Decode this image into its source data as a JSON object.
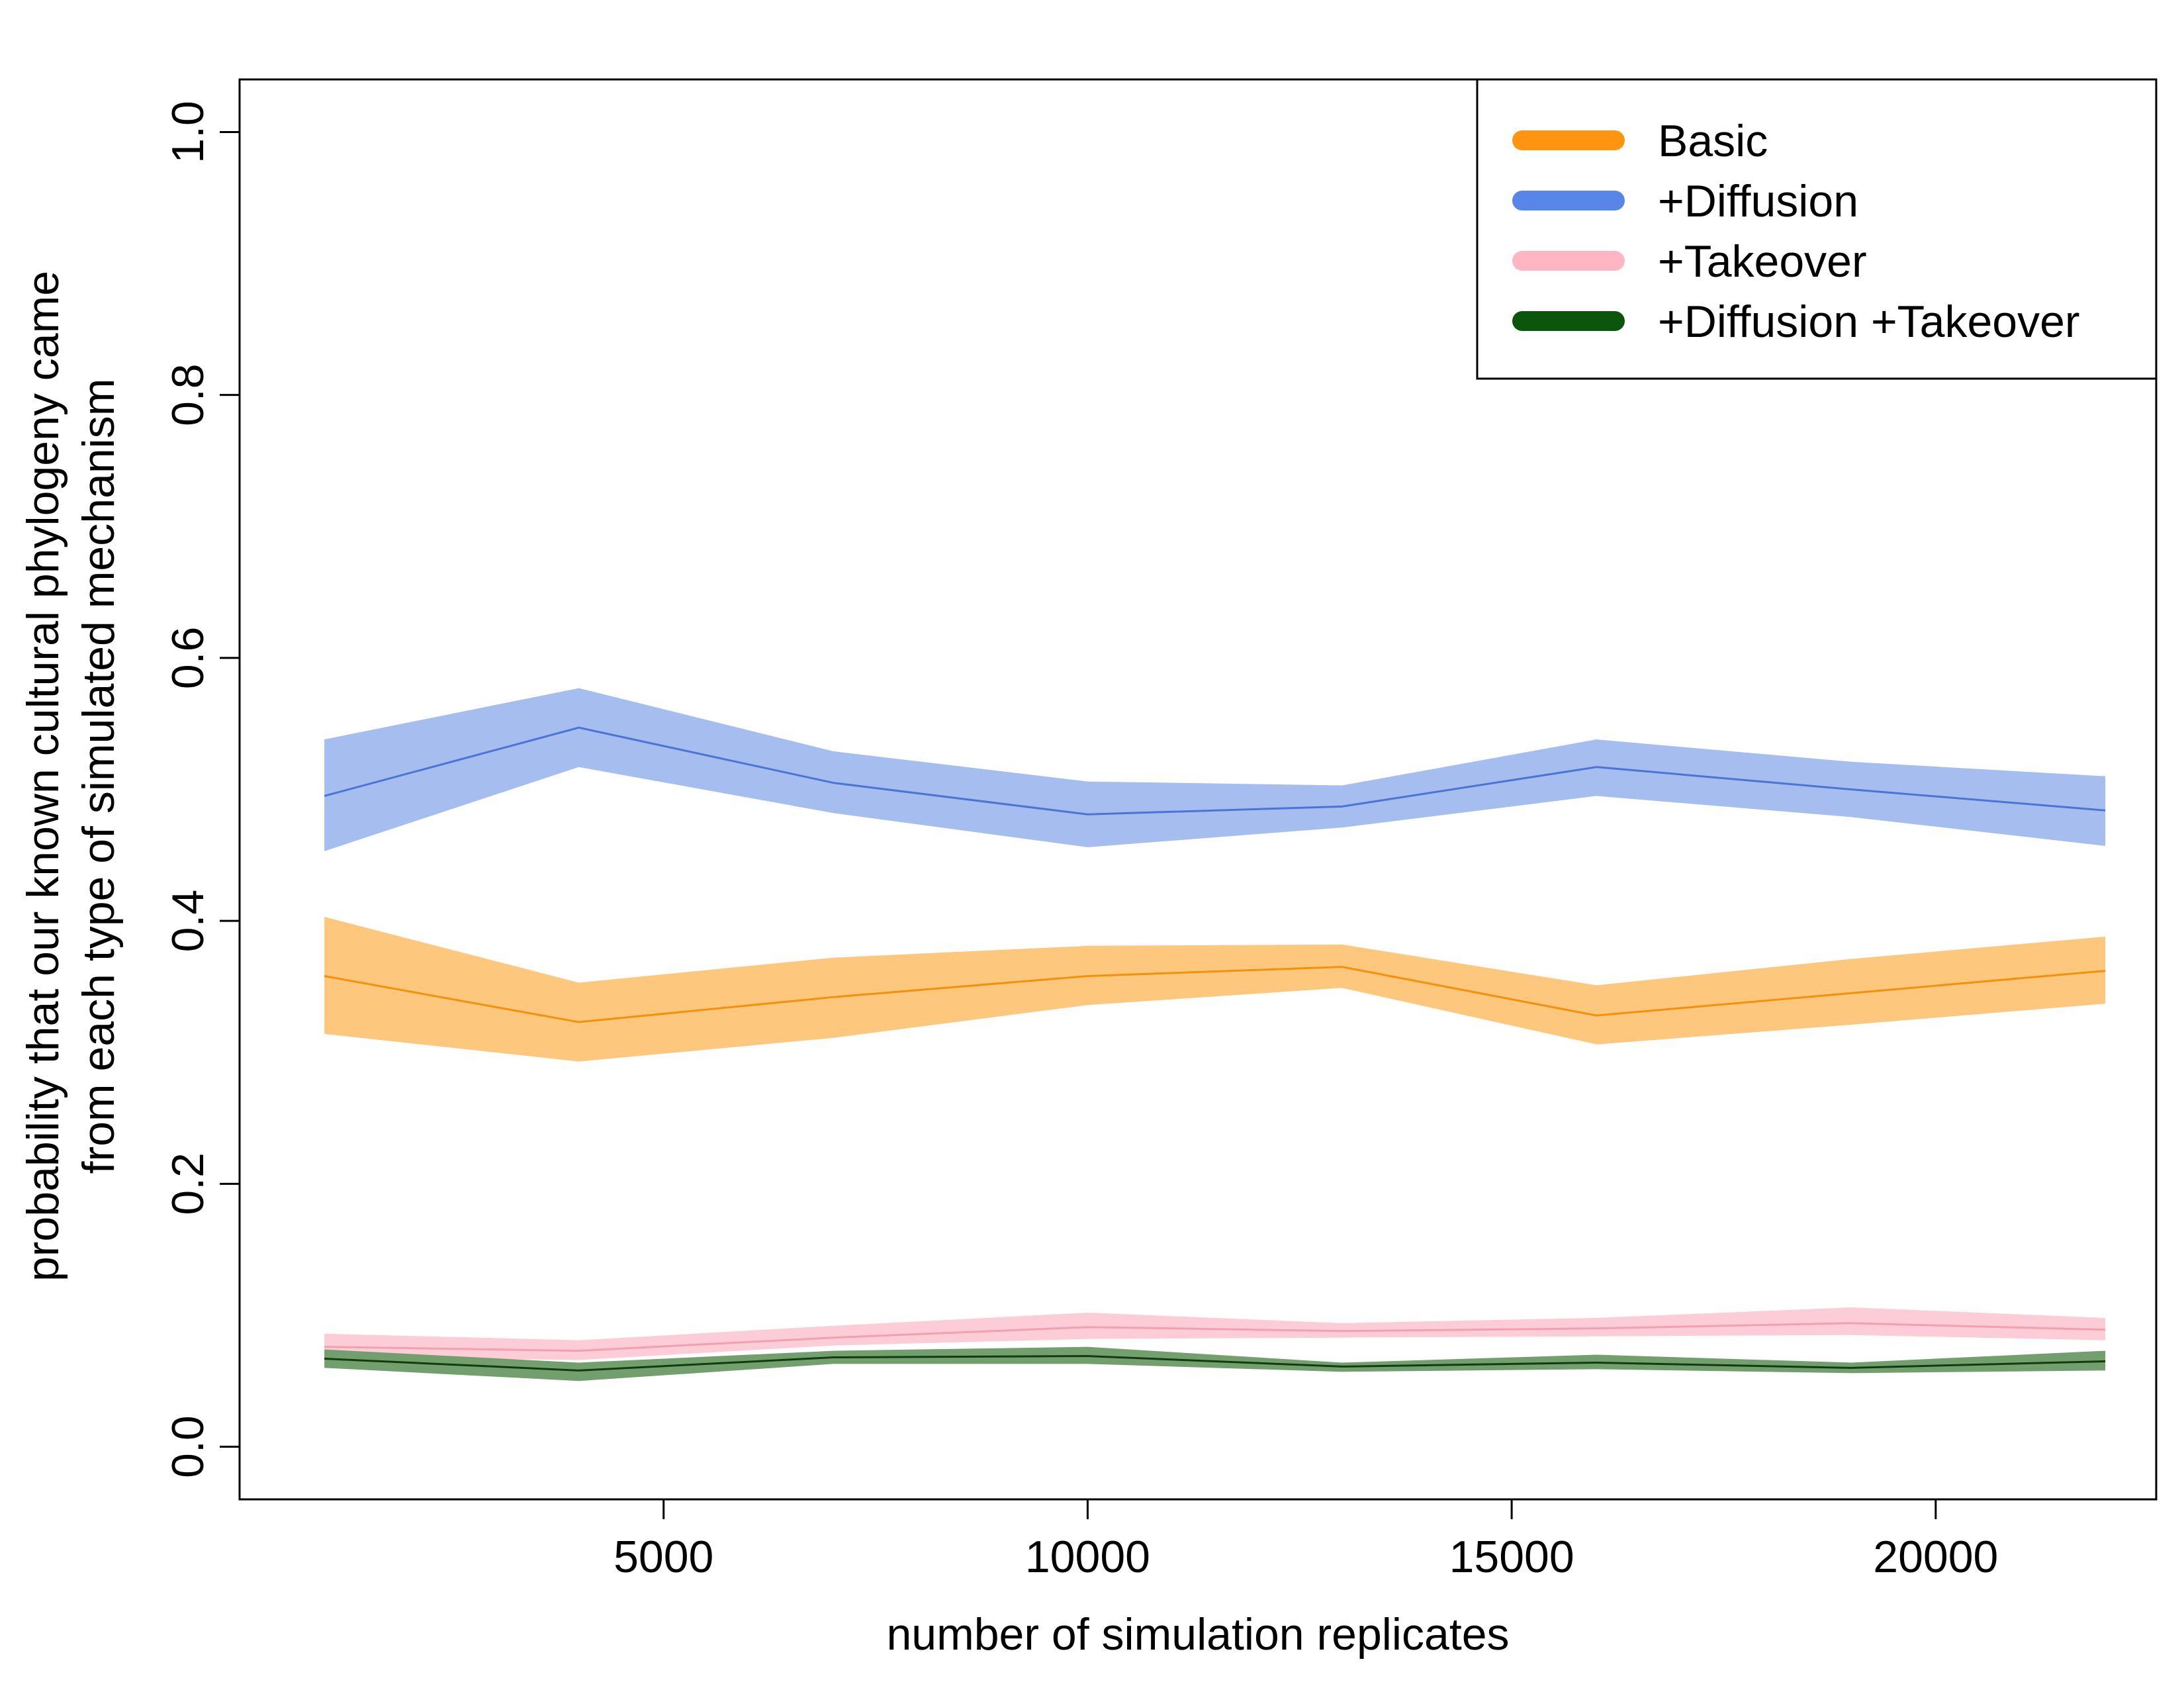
{
  "chart_data": {
    "type": "line",
    "xlabel": "number of simulation replicates",
    "ylabel_lines": [
      "probability that our known cultural phylogeny came",
      "from each type of simulated mechanism"
    ],
    "xlim": [
      0,
      22600
    ],
    "ylim": [
      -0.04,
      1.04
    ],
    "x_ticks": [
      5000,
      10000,
      15000,
      20000
    ],
    "x_tick_labels": [
      "5000",
      "10000",
      "15000",
      "20000"
    ],
    "y_ticks": [
      0.0,
      0.2,
      0.4,
      0.6,
      0.8,
      1.0
    ],
    "y_tick_labels": [
      "0.0",
      "0.2",
      "0.4",
      "0.6",
      "0.8",
      "1.0"
    ],
    "legend_position": "top-right",
    "grid": false,
    "x": [
      1000,
      4000,
      7000,
      10000,
      13000,
      16000,
      19000,
      22000
    ],
    "series": [
      {
        "name": "Basic",
        "line_color": "#f5900a",
        "band_color": "#fdc77e",
        "legend_color": "#ff9410",
        "values": [
          0.358,
          0.323,
          0.342,
          0.358,
          0.365,
          0.328,
          0.345,
          0.362
        ],
        "upper": [
          0.403,
          0.353,
          0.372,
          0.381,
          0.382,
          0.351,
          0.371,
          0.388
        ],
        "lower": [
          0.314,
          0.293,
          0.311,
          0.336,
          0.349,
          0.306,
          0.321,
          0.337
        ]
      },
      {
        "name": "+Diffusion",
        "line_color": "#4a74d8",
        "band_color": "#a6bdf0",
        "legend_color": "#5886e8",
        "values": [
          0.495,
          0.547,
          0.505,
          0.481,
          0.487,
          0.517,
          0.5,
          0.484
        ],
        "upper": [
          0.538,
          0.577,
          0.529,
          0.506,
          0.503,
          0.538,
          0.521,
          0.51
        ],
        "lower": [
          0.453,
          0.517,
          0.482,
          0.456,
          0.471,
          0.495,
          0.479,
          0.457
        ]
      },
      {
        "name": "+Takeover",
        "line_color": "#f2a0ae",
        "band_color": "#fccdd6",
        "legend_color": "#ffb5c2",
        "values": [
          0.076,
          0.073,
          0.083,
          0.091,
          0.088,
          0.09,
          0.094,
          0.089
        ],
        "upper": [
          0.086,
          0.081,
          0.092,
          0.102,
          0.094,
          0.098,
          0.106,
          0.098
        ],
        "lower": [
          0.068,
          0.066,
          0.077,
          0.082,
          0.083,
          0.084,
          0.085,
          0.081
        ]
      },
      {
        "name": "+Diffusion +Takeover",
        "line_color": "#0f3d0f",
        "band_color": "#739f6f",
        "legend_color": "#0c550c",
        "values": [
          0.067,
          0.058,
          0.068,
          0.069,
          0.061,
          0.064,
          0.06,
          0.065
        ],
        "upper": [
          0.074,
          0.064,
          0.073,
          0.076,
          0.064,
          0.07,
          0.064,
          0.073
        ],
        "lower": [
          0.06,
          0.05,
          0.063,
          0.063,
          0.057,
          0.059,
          0.056,
          0.058
        ]
      }
    ]
  }
}
